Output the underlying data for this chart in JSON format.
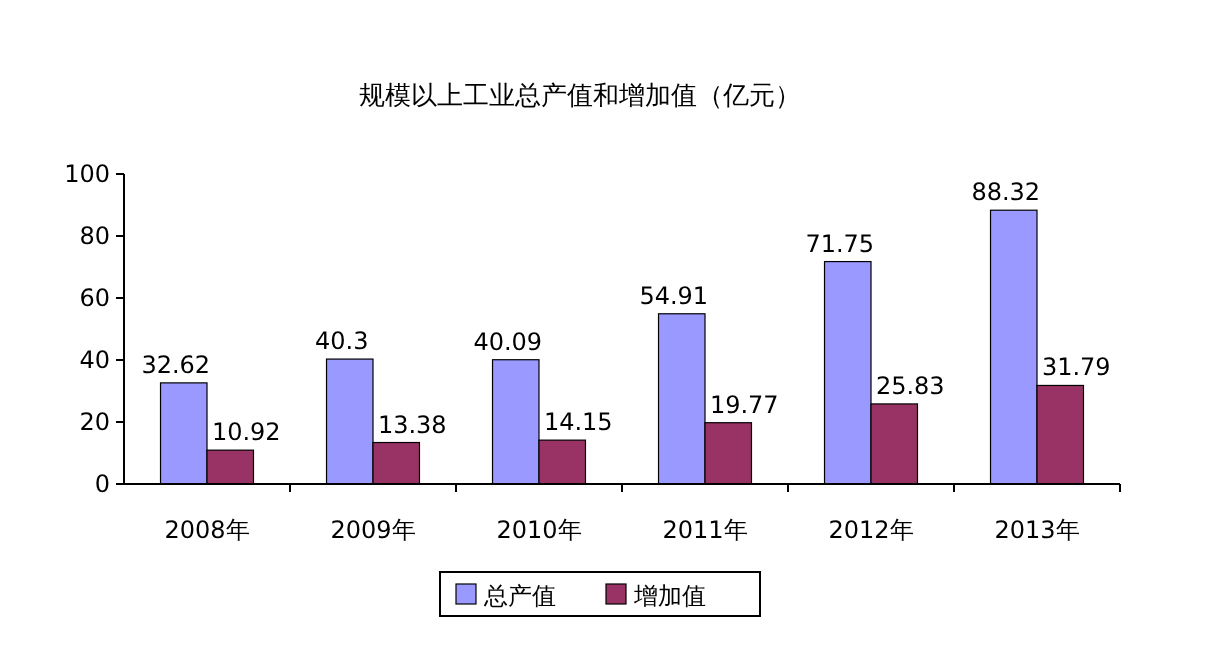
{
  "chart_data": {
    "type": "bar",
    "title": "规模以上工业总产值和增加值（亿元）",
    "categories": [
      "2008年",
      "2009年",
      "2010年",
      "2011年",
      "2012年",
      "2013年"
    ],
    "series": [
      {
        "name": "总产值",
        "color": "#9999ff",
        "values": [
          32.62,
          40.3,
          40.09,
          54.91,
          71.75,
          88.32
        ]
      },
      {
        "name": "增加值",
        "color": "#993366",
        "values": [
          10.92,
          13.38,
          14.15,
          19.77,
          25.83,
          31.79
        ]
      }
    ],
    "ylim": [
      0,
      100
    ],
    "yticks": [
      0,
      20,
      40,
      60,
      80,
      100
    ],
    "data_labels": true,
    "legend": "bottom",
    "grid": false
  }
}
